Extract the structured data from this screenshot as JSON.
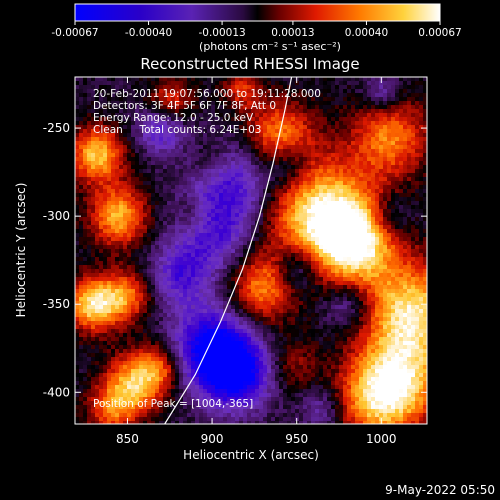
{
  "colorbar": {
    "ticks": [
      "-0.00067",
      "-0.00040",
      "-0.00013",
      "0.00013",
      "0.00040",
      "0.00067"
    ],
    "ticks_value": [
      -0.00067,
      -0.0004,
      -0.00013,
      0.00013,
      0.0004,
      0.00067
    ],
    "range": [
      -0.00067,
      0.00067
    ],
    "unit_label": "(photons cm⁻² s⁻¹ asec⁻²)"
  },
  "chart_data": {
    "type": "heatmap",
    "title": "Reconstructed RHESSI Image",
    "xlabel": "Heliocentric X (arcsec)",
    "ylabel": "Heliocentric Y (arcsec)",
    "xlim": [
      819,
      1027
    ],
    "ylim": [
      -418,
      -221
    ],
    "x_ticks": [
      "850",
      "900",
      "950",
      "1000"
    ],
    "x_ticks_value": [
      850,
      900,
      950,
      1000
    ],
    "y_ticks": [
      "-250",
      "-300",
      "-350",
      "-400"
    ],
    "y_ticks_value": [
      -250,
      -300,
      -350,
      -400
    ],
    "limb_curve": [
      [
        872,
        -418
      ],
      [
        890,
        -390
      ],
      [
        905,
        -360
      ],
      [
        918,
        -330
      ],
      [
        928,
        -300
      ],
      [
        936,
        -270
      ],
      [
        943,
        -240
      ],
      [
        947,
        -221
      ]
    ],
    "peak": [
      1004,
      -365
    ],
    "annotations": [
      "20-Feb-2011 19:07:56.000 to 19:11:28.000",
      "Detectors: 3F 4F 5F 6F 7F 8F, Att 0",
      "Energy Range: 12.0 - 25.0 keV",
      "Clean     Total counts: 6.24E+03"
    ],
    "peak_label": "Position of Peak = [1004,-365]",
    "colormap": "blue-purple-black-red-yellow-white"
  },
  "footer": {
    "timestamp": "9-May-2022 05:50"
  }
}
